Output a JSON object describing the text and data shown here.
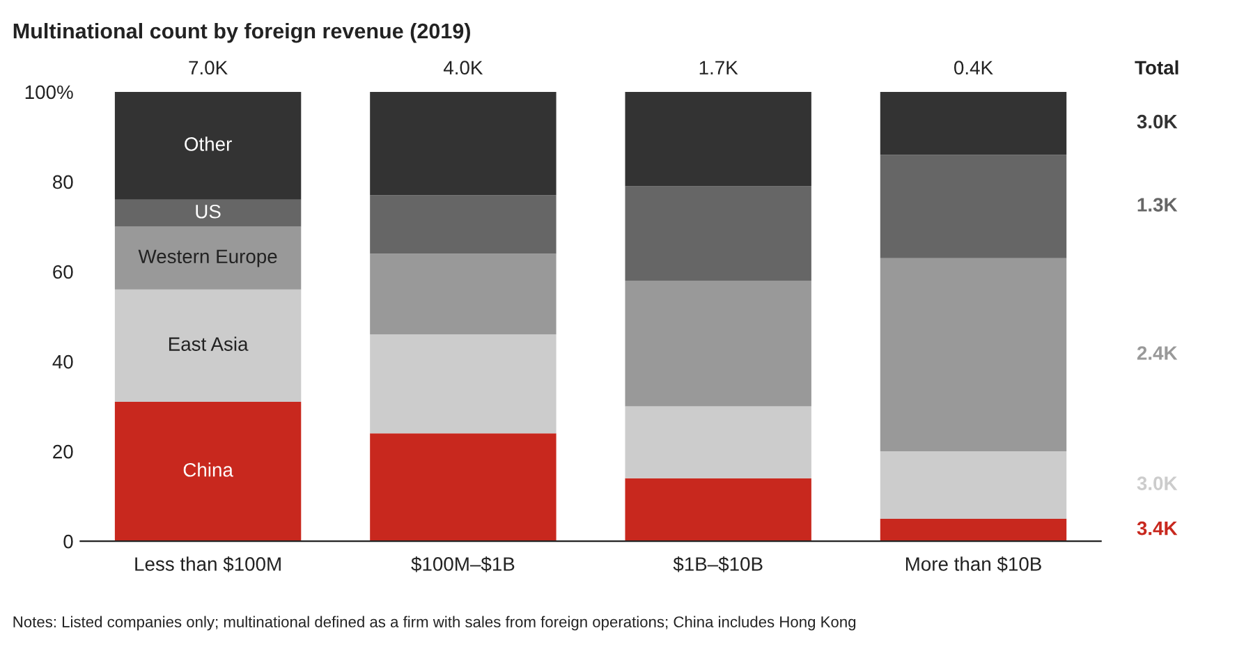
{
  "chart_data": {
    "type": "bar",
    "stacked": true,
    "title": "Multinational count by foreign revenue (2019)",
    "categories": [
      "Less than $100M",
      "$100M–$1B",
      "$1B–$10B",
      "More than $10B"
    ],
    "series": [
      {
        "name": "China",
        "color": "#c8281e",
        "values": [
          31,
          24,
          14,
          5
        ]
      },
      {
        "name": "East Asia",
        "color": "#cccccc",
        "values": [
          25,
          22,
          16,
          15
        ]
      },
      {
        "name": "Western Europe",
        "color": "#999999",
        "values": [
          14,
          18,
          28,
          43
        ]
      },
      {
        "name": "US",
        "color": "#666666",
        "values": [
          6,
          13,
          21,
          23
        ]
      },
      {
        "name": "Other",
        "color": "#333333",
        "values": [
          24,
          23,
          21,
          14
        ]
      }
    ],
    "ylim": [
      0,
      100
    ],
    "yticks": [
      0,
      20,
      40,
      60,
      {
        "value": 80,
        "label": "80"
      },
      {
        "value": 100,
        "label": "100%"
      }
    ],
    "grid": false,
    "legend": false,
    "annotations": [
      "7.0K",
      "4.0K",
      "1.7K",
      "0.4K",
      "Total",
      "3.0K",
      "1.3K",
      "2.4K",
      "3.0K",
      "3.4K",
      "Notes: Listed companies only; multinational defined as a firm with sales from foreign operations; China includes Hong Kong"
    ]
  }
}
